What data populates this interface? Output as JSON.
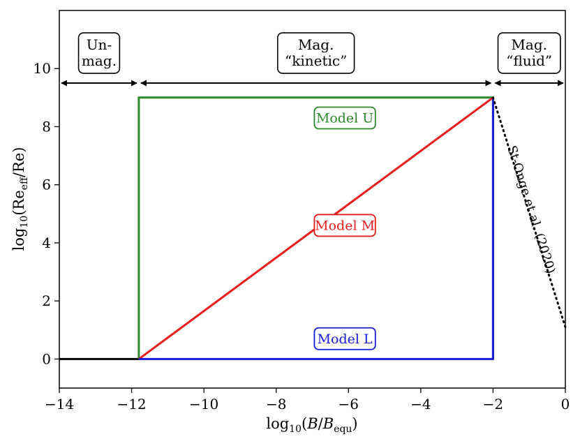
{
  "chart_data": {
    "type": "line",
    "xlabel": "log10(B/Bequ)",
    "ylabel": "log10(Reeff/Re)",
    "xlim": [
      -14,
      0
    ],
    "ylim": [
      -1,
      12
    ],
    "xticks": [
      -14,
      -12,
      -10,
      -8,
      -6,
      -4,
      -2,
      0
    ],
    "xtick_labels": [
      "−14",
      "−12",
      "−10",
      "−8",
      "−6",
      "−4",
      "−2",
      "0"
    ],
    "yticks": [
      0,
      2,
      4,
      6,
      8,
      10
    ],
    "ytick_labels": [
      "0",
      "2",
      "4",
      "6",
      "8",
      "10"
    ],
    "grid": false,
    "series": [
      {
        "name": "",
        "color": "#000000",
        "style": "solid",
        "x": [
          -14,
          -11.8
        ],
        "y": [
          0,
          0
        ]
      },
      {
        "name": "Model U",
        "color": "#2a8a2a",
        "style": "solid",
        "x": [
          -11.8,
          -11.8,
          -2,
          -2
        ],
        "y": [
          0,
          9,
          9,
          0
        ]
      },
      {
        "name": "Model M",
        "color": "#e81c1c",
        "style": "solid",
        "x": [
          -11.8,
          -2
        ],
        "y": [
          0,
          9
        ]
      },
      {
        "name": "Model L",
        "color": "#1a1ad8",
        "style": "solid",
        "x": [
          -11.8,
          -2,
          -2
        ],
        "y": [
          0,
          0,
          9
        ]
      },
      {
        "name": "St-Onge et al. (2020)",
        "color": "#000000",
        "style": "dotted",
        "x": [
          -2,
          0
        ],
        "y": [
          9,
          1.1
        ]
      }
    ],
    "regions": [
      {
        "label_lines": [
          "Un-",
          "mag."
        ],
        "x_range": [
          -14,
          -11.8
        ],
        "arrow_y": 9.5
      },
      {
        "label_lines": [
          "Mag.",
          "“kinetic”"
        ],
        "x_range": [
          -11.8,
          -2
        ],
        "arrow_y": 9.5
      },
      {
        "label_lines": [
          "Mag.",
          "“fluid”"
        ],
        "x_range": [
          -2,
          0
        ],
        "arrow_y": 9.5
      }
    ],
    "model_labels": [
      {
        "text": "Model U",
        "color": "#2a8a2a",
        "x": -6.1,
        "y": 8.3
      },
      {
        "text": "Model M",
        "color": "#e81c1c",
        "x": -6.1,
        "y": 4.6
      },
      {
        "text": "Model L",
        "color": "#1a1ad8",
        "x": -6.1,
        "y": 0.7
      }
    ],
    "annotation": {
      "text": "St-Onge et al. (2020)",
      "x": -1.05,
      "y": 5.1
    }
  }
}
